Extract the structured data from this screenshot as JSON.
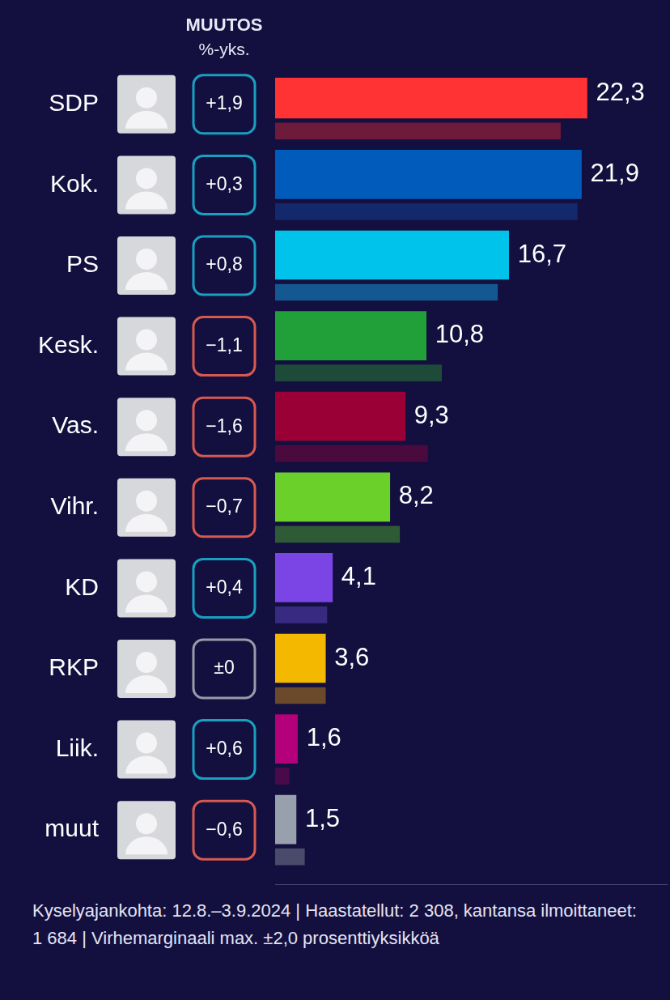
{
  "chart_data": {
    "type": "bar",
    "orientation": "horizontal",
    "change_title": "MUUTOS",
    "change_unit": "%-yks.",
    "categories": [
      "SDP",
      "Kok.",
      "PS",
      "Kesk.",
      "Vas.",
      "Vihr.",
      "KD",
      "RKP",
      "Liik.",
      "muut"
    ],
    "values": [
      22.3,
      21.9,
      16.7,
      10.8,
      9.3,
      8.2,
      4.1,
      3.6,
      1.6,
      1.5
    ],
    "value_labels": [
      "22,3",
      "21,9",
      "16,7",
      "10,8",
      "9,3",
      "8,2",
      "4,1",
      "3,6",
      "1,6",
      "1,5"
    ],
    "colors": [
      "#ff3333",
      "#005bbb",
      "#00c3ec",
      "#21a03a",
      "#9a0036",
      "#6bd12a",
      "#7b45e6",
      "#f5b800",
      "#b4007a",
      "#98a0ad"
    ],
    "previous_values": [
      20.4,
      21.6,
      15.9,
      11.9,
      10.9,
      8.9,
      3.7,
      3.6,
      1.0,
      2.1
    ],
    "previous_colors": [
      "#6e1a3a",
      "#13296b",
      "#135891",
      "#1e4a3a",
      "#4a0a3e",
      "#2f5a36",
      "#382a80",
      "#6a4a2a",
      "#4a0a4a",
      "#4a4a6a"
    ],
    "changes": [
      1.9,
      0.3,
      0.8,
      -1.1,
      -1.6,
      -0.7,
      0.4,
      0,
      0.6,
      -0.6
    ],
    "change_labels": [
      "+1,9",
      "+0,3",
      "+0,8",
      "−1,1",
      "−1,6",
      "−0,7",
      "+0,4",
      "±0",
      "+0,6",
      "−0,6"
    ],
    "xlim": [
      0,
      28
    ],
    "grid": false,
    "tick_labels": false,
    "data_labels": true,
    "footer": "Kyselyajankohta: 12.8.–3.9.2024 | Haastatellut: 2 308, kantansa ilmoittaneet: 1 684 | Virhemarginaali max. ±2,0 prosenttiyksikköä"
  }
}
